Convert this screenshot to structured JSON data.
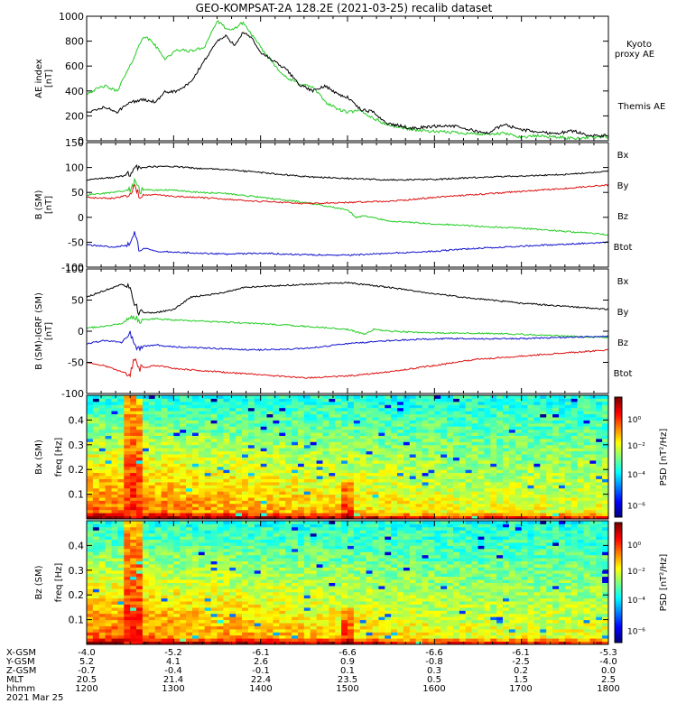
{
  "title": "GEO-KOMPSAT-2A 128.2E (2021-03-25) recalib dataset",
  "colors": {
    "black": "#000000",
    "green": "#22cc22",
    "red": "#dd1111",
    "blue": "#1111cc"
  },
  "x_axis": {
    "rows": [
      {
        "label": "X-GSM",
        "values": [
          "-4.0",
          "-5.2",
          "-6.1",
          "-6.6",
          "-6.6",
          "-6.1",
          "-5.3"
        ]
      },
      {
        "label": "Y-GSM",
        "values": [
          "5.2",
          "4.1",
          "2.6",
          "0.9",
          "-0.8",
          "-2.5",
          "-4.0"
        ]
      },
      {
        "label": "Z-GSM",
        "values": [
          "-0.7",
          "-0.4",
          "-0.1",
          "0.1",
          "0.3",
          "0.2",
          "0.0"
        ]
      },
      {
        "label": "MLT",
        "values": [
          "20.5",
          "21.4",
          "22.4",
          "23.5",
          "0.5",
          "1.5",
          "2.5"
        ]
      },
      {
        "label": "hhmm",
        "values": [
          "1200",
          "1300",
          "1400",
          "1500",
          "1600",
          "1700",
          "1800"
        ]
      }
    ],
    "date": "2021 Mar 25"
  },
  "chart_data": [
    {
      "type": "line",
      "ylabel": "AE index [nT]",
      "ylim": [
        0,
        1000
      ],
      "yticks": [
        "0",
        "200",
        "400",
        "600",
        "800",
        "1000"
      ],
      "x_unit": "hours UT",
      "xlim": [
        12,
        18
      ],
      "series": [
        {
          "name": "Kyoto proxy AE",
          "color": "green",
          "x": [
            12.0,
            12.2,
            12.35,
            12.5,
            12.65,
            12.75,
            12.9,
            13.05,
            13.2,
            13.35,
            13.5,
            13.65,
            13.8,
            13.9,
            14.0,
            14.15,
            14.3,
            14.45,
            14.6,
            14.75,
            14.9,
            15.0,
            15.15,
            15.3,
            15.45,
            15.6,
            15.75,
            15.9,
            16.05,
            16.2,
            16.4,
            16.6,
            16.8,
            17.0,
            17.2,
            17.4,
            17.6,
            17.8,
            18.0
          ],
          "y": [
            380,
            440,
            400,
            600,
            840,
            800,
            660,
            730,
            720,
            750,
            960,
            880,
            950,
            850,
            750,
            620,
            500,
            460,
            430,
            310,
            250,
            230,
            240,
            180,
            130,
            110,
            90,
            80,
            70,
            70,
            60,
            50,
            60,
            30,
            40,
            30,
            20,
            30,
            30
          ]
        },
        {
          "name": "Themis AE",
          "color": "black",
          "x": [
            12.0,
            12.2,
            12.35,
            12.5,
            12.65,
            12.8,
            12.9,
            13.05,
            13.2,
            13.35,
            13.5,
            13.6,
            13.7,
            13.8,
            13.9,
            14.0,
            14.15,
            14.3,
            14.45,
            14.6,
            14.75,
            14.9,
            15.0,
            15.15,
            15.3,
            15.45,
            15.6,
            15.75,
            15.9,
            16.05,
            16.2,
            16.4,
            16.6,
            16.8,
            17.0,
            17.2,
            17.4,
            17.6,
            17.8,
            18.0
          ],
          "y": [
            220,
            270,
            230,
            310,
            330,
            310,
            390,
            400,
            470,
            640,
            800,
            840,
            770,
            870,
            820,
            710,
            640,
            570,
            450,
            400,
            440,
            370,
            350,
            250,
            230,
            140,
            120,
            100,
            110,
            120,
            120,
            90,
            60,
            130,
            90,
            70,
            60,
            80,
            40,
            40
          ]
        }
      ],
      "right_labels": [
        {
          "text": "Kyoto",
          "color": "green"
        },
        {
          "text": "proxy AE",
          "color": "green"
        },
        {
          "text": "Themis AE",
          "color": "black"
        }
      ]
    },
    {
      "type": "line",
      "ylabel": "B (SM) [nT]",
      "ylim": [
        -100,
        150
      ],
      "yticks": [
        "-100",
        "-50",
        "0",
        "50",
        "100",
        "150"
      ],
      "x_unit": "hours UT",
      "xlim": [
        12,
        18
      ],
      "series": [
        {
          "name": "Btot",
          "color": "black",
          "x": [
            12.0,
            12.3,
            12.5,
            12.55,
            12.6,
            12.8,
            13.0,
            13.3,
            13.6,
            14.0,
            14.5,
            15.0,
            15.5,
            16.0,
            16.5,
            17.0,
            17.5,
            18.0
          ],
          "y": [
            75,
            80,
            85,
            105,
            100,
            102,
            102,
            98,
            96,
            90,
            82,
            78,
            75,
            76,
            80,
            83,
            86,
            92
          ]
        },
        {
          "name": "By",
          "color": "green",
          "x": [
            12.0,
            12.3,
            12.5,
            12.55,
            12.6,
            12.8,
            13.0,
            13.3,
            13.6,
            14.0,
            14.5,
            15.0,
            15.1,
            15.2,
            15.5,
            16.0,
            16.5,
            17.0,
            17.5,
            18.0
          ],
          "y": [
            45,
            50,
            55,
            70,
            55,
            55,
            55,
            50,
            48,
            40,
            30,
            15,
            0,
            3,
            -8,
            -13,
            -18,
            -22,
            -28,
            -35
          ]
        },
        {
          "name": "Bz",
          "color": "red",
          "x": [
            12.0,
            12.3,
            12.5,
            12.55,
            12.6,
            12.8,
            13.0,
            13.3,
            13.6,
            14.0,
            14.5,
            15.0,
            15.5,
            16.0,
            16.5,
            17.0,
            17.5,
            18.0
          ],
          "y": [
            40,
            38,
            45,
            60,
            45,
            45,
            42,
            40,
            36,
            32,
            28,
            30,
            32,
            40,
            46,
            52,
            58,
            65
          ]
        },
        {
          "name": "Bx",
          "color": "blue",
          "x": [
            12.0,
            12.3,
            12.5,
            12.55,
            12.6,
            12.8,
            13.0,
            13.3,
            13.6,
            14.0,
            14.5,
            15.0,
            15.5,
            16.0,
            16.5,
            17.0,
            17.5,
            18.0
          ],
          "y": [
            -55,
            -60,
            -55,
            -35,
            -60,
            -68,
            -70,
            -72,
            -74,
            -72,
            -75,
            -76,
            -72,
            -68,
            -62,
            -58,
            -54,
            -50
          ]
        }
      ],
      "right_labels": [
        {
          "text": "Bx",
          "color": "blue"
        },
        {
          "text": "By",
          "color": "green"
        },
        {
          "text": "Bz",
          "color": "red"
        },
        {
          "text": "Btot",
          "color": "black"
        }
      ]
    },
    {
      "type": "line",
      "ylabel": "B (SM)-IGRF (SM) [nT]",
      "ylim": [
        -100,
        100
      ],
      "yticks": [
        "-100",
        "-50",
        "0",
        "50",
        "100"
      ],
      "x_unit": "hours UT",
      "xlim": [
        12,
        18
      ],
      "series": [
        {
          "name": "Btot",
          "color": "black",
          "x": [
            12.0,
            12.2,
            12.4,
            12.5,
            12.55,
            12.6,
            12.8,
            13.0,
            13.2,
            13.5,
            13.8,
            14.0,
            14.5,
            15.0,
            15.5,
            16.0,
            16.5,
            17.0,
            17.5,
            18.0
          ],
          "y": [
            55,
            65,
            75,
            70,
            45,
            30,
            30,
            35,
            55,
            60,
            70,
            72,
            75,
            78,
            70,
            60,
            52,
            45,
            40,
            35
          ]
        },
        {
          "name": "By",
          "color": "green",
          "x": [
            12.0,
            12.2,
            12.4,
            12.5,
            12.55,
            12.6,
            12.8,
            13.0,
            13.5,
            14.0,
            14.5,
            15.0,
            15.2,
            15.3,
            15.5,
            16.0,
            16.5,
            17.0,
            17.5,
            18.0
          ],
          "y": [
            5,
            8,
            12,
            20,
            25,
            18,
            20,
            18,
            15,
            12,
            8,
            3,
            -5,
            3,
            0,
            -3,
            -3,
            -5,
            -8,
            -10
          ]
        },
        {
          "name": "Bx",
          "color": "blue",
          "x": [
            12.0,
            12.2,
            12.4,
            12.5,
            12.55,
            12.6,
            12.8,
            13.0,
            13.5,
            14.0,
            14.5,
            15.0,
            15.5,
            16.0,
            16.5,
            17.0,
            17.5,
            18.0
          ],
          "y": [
            -20,
            -15,
            -18,
            -5,
            -22,
            -25,
            -22,
            -25,
            -28,
            -30,
            -28,
            -20,
            -15,
            -12,
            -12,
            -12,
            -10,
            -8
          ]
        },
        {
          "name": "Bz",
          "color": "red",
          "x": [
            12.0,
            12.2,
            12.4,
            12.5,
            12.55,
            12.6,
            12.8,
            13.0,
            13.2,
            13.5,
            14.0,
            14.5,
            15.0,
            15.5,
            16.0,
            16.5,
            17.0,
            17.5,
            18.0
          ],
          "y": [
            -50,
            -55,
            -65,
            -70,
            -45,
            -60,
            -55,
            -60,
            -62,
            -65,
            -70,
            -75,
            -72,
            -65,
            -55,
            -45,
            -40,
            -35,
            -30
          ]
        }
      ],
      "right_labels": [
        {
          "text": "Bx",
          "color": "blue"
        },
        {
          "text": "By",
          "color": "green"
        },
        {
          "text": "Bz",
          "color": "red"
        },
        {
          "text": "Btot",
          "color": "black"
        }
      ]
    },
    {
      "type": "heatmap",
      "ylabel": "Bx (SM)",
      "ylabel2": "freq [Hz]",
      "yticks": [
        "0.1",
        "0.2",
        "0.3",
        "0.4"
      ],
      "ylim": [
        0,
        0.5
      ],
      "xlim": [
        12,
        18
      ],
      "colorbar": {
        "label": "PSD [nT²/Hz]",
        "ticks": [
          "10⁻⁶",
          "10⁻⁴",
          "10⁻²",
          "10⁰"
        ]
      }
    },
    {
      "type": "heatmap",
      "ylabel": "Bz (SM)",
      "ylabel2": "freq [Hz]",
      "yticks": [
        "0.1",
        "0.2",
        "0.3",
        "0.4"
      ],
      "ylim": [
        0,
        0.5
      ],
      "xlim": [
        12,
        18
      ],
      "colorbar": {
        "label": "PSD [nT²/Hz]",
        "ticks": [
          "10⁻⁶",
          "10⁻⁴",
          "10⁻²",
          "10⁰"
        ]
      }
    }
  ]
}
